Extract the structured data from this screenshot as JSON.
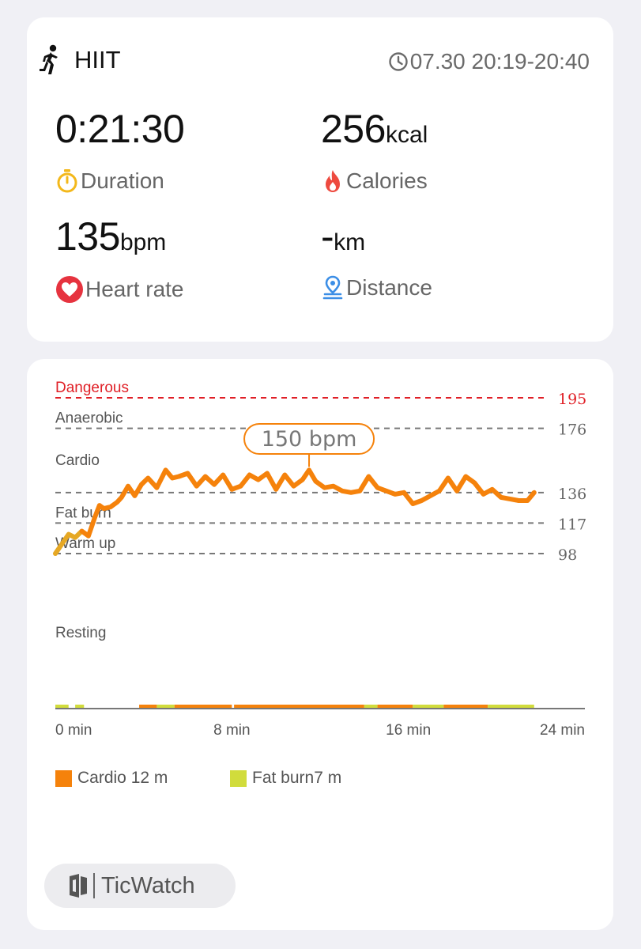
{
  "workout": {
    "activity": "HIIT",
    "time_range": "07.30 20:19-20:40"
  },
  "metrics": {
    "duration": {
      "value": "0:21:30",
      "label": "Duration"
    },
    "calories": {
      "value": "256",
      "unit": "kcal",
      "label": "Calories"
    },
    "heart_rate": {
      "value": "135",
      "unit": "bpm",
      "label": "Heart rate"
    },
    "distance": {
      "value": "-",
      "unit": "km",
      "label": "Distance"
    }
  },
  "colors": {
    "danger": "#e01f26",
    "cardio": "#f5820b",
    "fat_burn": "#d1dc3c",
    "warm_up": "#e6a824",
    "stopwatch": "#f3b81b",
    "flame": "#ee4a3f",
    "heart": "#e6333f",
    "location": "#3b8ee6"
  },
  "icons": {
    "activity": "running-person-icon",
    "clock": "clock-icon",
    "stopwatch": "stopwatch-icon",
    "flame": "flame-icon",
    "heart": "heart-icon",
    "location": "location-pin-icon",
    "brand": "ticwatch-logo-icon"
  },
  "chart_data": {
    "type": "line",
    "zones": [
      {
        "name": "Dangerous",
        "threshold": 195
      },
      {
        "name": "Anaerobic",
        "threshold": 176
      },
      {
        "name": "Cardio",
        "threshold": 136
      },
      {
        "name": "Fat burn",
        "threshold": 117
      },
      {
        "name": "Warm up",
        "threshold": 98
      },
      {
        "name": "Resting"
      }
    ],
    "x_ticks": [
      "0 min",
      "8 min",
      "16 min",
      "24 min"
    ],
    "xlim": [
      0,
      24
    ],
    "peak_label": "150 bpm",
    "peak": {
      "x": 11.5,
      "y": 150
    },
    "series": [
      {
        "x": [
          0,
          0.3,
          0.6,
          0.9,
          1.2,
          1.5,
          1.8,
          2.0,
          2.2,
          2.5,
          2.8,
          3.0,
          3.3,
          3.6,
          3.9,
          4.2,
          4.6,
          5.0,
          5.3,
          5.6,
          6.0,
          6.4,
          6.8,
          7.2,
          7.6,
          8.0,
          8.4,
          8.8,
          9.2,
          9.6,
          10.0,
          10.4,
          10.8,
          11.2,
          11.5,
          11.8,
          12.2,
          12.6,
          13.0,
          13.4,
          13.8,
          14.2,
          14.6,
          15.0,
          15.4,
          15.8,
          16.2,
          16.6,
          17.0,
          17.4,
          17.8,
          18.2,
          18.6,
          19.0,
          19.4,
          19.8,
          20.2,
          20.6,
          21.0,
          21.4,
          21.7
        ],
        "y": [
          98,
          104,
          110,
          108,
          112,
          109,
          121,
          128,
          126,
          127,
          130,
          133,
          140,
          134,
          141,
          145,
          139,
          150,
          145,
          146,
          148,
          140,
          146,
          141,
          147,
          138,
          140,
          147,
          144,
          148,
          138,
          147,
          140,
          144,
          150,
          143,
          139,
          140,
          137,
          136,
          137,
          146,
          139,
          137,
          135,
          136,
          129,
          131,
          134,
          137,
          145,
          137,
          146,
          142,
          135,
          138,
          133,
          132,
          131,
          131,
          136
        ]
      }
    ],
    "legend": [
      {
        "label": "Cardio 12 m",
        "color": "#f5820b"
      },
      {
        "label": "Fat burn7 m",
        "color": "#d1dc3c"
      }
    ]
  },
  "brand": {
    "name": "TicWatch"
  }
}
